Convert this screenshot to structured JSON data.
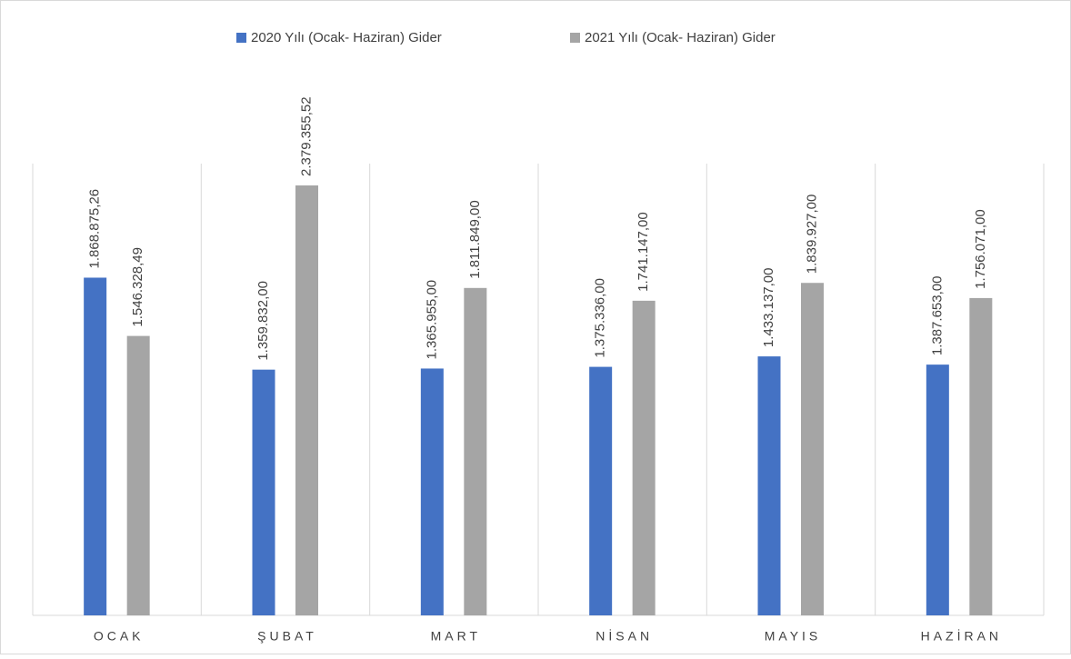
{
  "chart_data": {
    "type": "bar",
    "categories": [
      "OCAK",
      "ŞUBAT",
      "MART",
      "NİSAN",
      "MAYIS",
      "HAZİRAN"
    ],
    "series": [
      {
        "name": "2020 Yılı (Ocak- Haziran) Gider",
        "color": "#4472c4",
        "values": [
          1868875.26,
          1359832.0,
          1365955.0,
          1375336.0,
          1433137.0,
          1387653.0
        ],
        "value_labels": [
          "1.868.875,26",
          "1.359.832,00",
          "1.365.955,00",
          "1.375.336,00",
          "1.433.137,00",
          "1.387.653,00"
        ]
      },
      {
        "name": "2021 Yılı (Ocak- Haziran) Gider",
        "color": "#a5a5a5",
        "values": [
          1546328.49,
          2379355.52,
          1811849.0,
          1741147.0,
          1839927.0,
          1756071.0
        ],
        "value_labels": [
          "1.546.328,49",
          "2.379.355,52",
          "1.811.849,00",
          "1.741.147,00",
          "1.839.927,00",
          "1.756.071,00"
        ]
      }
    ],
    "ylim": [
      0,
      2500000
    ],
    "legend": "top"
  }
}
